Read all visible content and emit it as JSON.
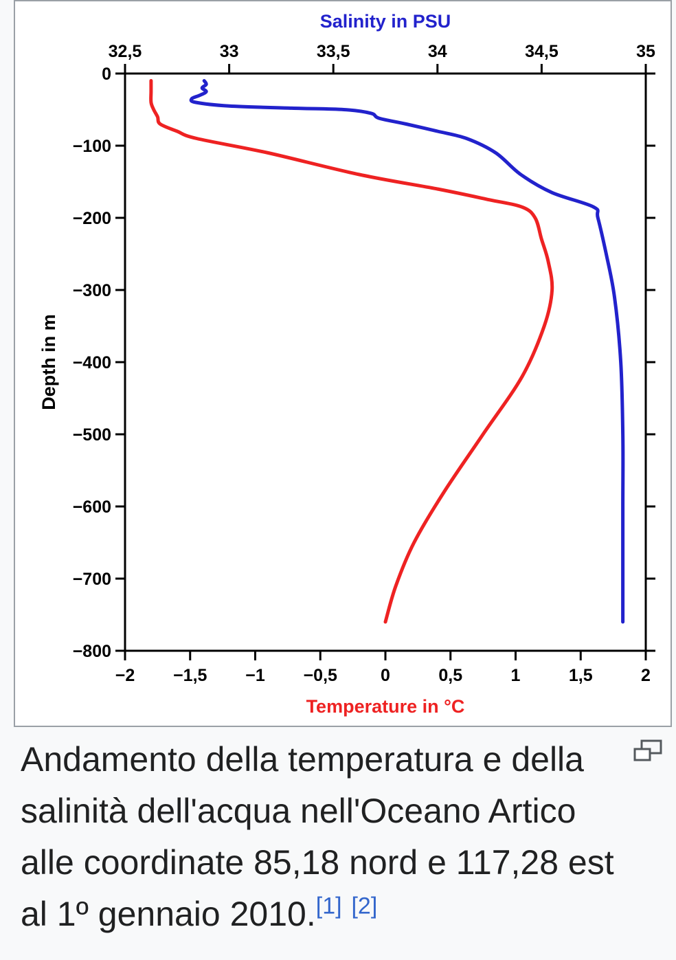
{
  "chart_data": {
    "type": "line",
    "top_axis": {
      "label": "Salinity in PSU",
      "range": [
        32.5,
        35
      ],
      "ticks": [
        32.5,
        33,
        33.5,
        34,
        34.5,
        35
      ],
      "tick_labels": [
        "32,5",
        "33",
        "33,5",
        "34",
        "34,5",
        "35"
      ],
      "color": "#2222cc"
    },
    "bottom_axis": {
      "label": "Temperature in °C",
      "range": [
        -2,
        2
      ],
      "ticks": [
        -2,
        -1.5,
        -1,
        -0.5,
        0,
        0.5,
        1,
        1.5,
        2
      ],
      "tick_labels": [
        "−2",
        "−1,5",
        "−1",
        "−0,5",
        "0",
        "0,5",
        "1",
        "1,5",
        "2"
      ],
      "color": "#ee2222"
    },
    "y_axis": {
      "label": "Depth in m",
      "range": [
        -800,
        0
      ],
      "ticks": [
        0,
        -100,
        -200,
        -300,
        -400,
        -500,
        -600,
        -700,
        -800
      ],
      "tick_labels": [
        "0",
        "−100",
        "−200",
        "−300",
        "−400",
        "−500",
        "−600",
        "−700",
        "−800"
      ]
    },
    "series": [
      {
        "key": "salinity",
        "axis": "top",
        "color": "#2222cc",
        "points": [
          [
            32.88,
            -10
          ],
          [
            32.89,
            -15
          ],
          [
            32.87,
            -20
          ],
          [
            32.89,
            -25
          ],
          [
            32.86,
            -30
          ],
          [
            32.82,
            -35
          ],
          [
            32.84,
            -40
          ],
          [
            33.0,
            -45
          ],
          [
            33.3,
            -48
          ],
          [
            33.55,
            -50
          ],
          [
            33.68,
            -55
          ],
          [
            33.72,
            -62
          ],
          [
            33.85,
            -70
          ],
          [
            34.0,
            -80
          ],
          [
            34.14,
            -90
          ],
          [
            34.28,
            -110
          ],
          [
            34.4,
            -140
          ],
          [
            34.55,
            -165
          ],
          [
            34.75,
            -185
          ],
          [
            34.77,
            -200
          ],
          [
            34.81,
            -250
          ],
          [
            34.85,
            -310
          ],
          [
            34.88,
            -400
          ],
          [
            34.89,
            -500
          ],
          [
            34.89,
            -600
          ],
          [
            34.89,
            -700
          ],
          [
            34.89,
            -760
          ]
        ]
      },
      {
        "key": "temperature",
        "axis": "bottom",
        "color": "#ee2222",
        "points": [
          [
            -1.8,
            -10
          ],
          [
            -1.8,
            -25
          ],
          [
            -1.8,
            -40
          ],
          [
            -1.78,
            -50
          ],
          [
            -1.75,
            -60
          ],
          [
            -1.73,
            -70
          ],
          [
            -1.6,
            -80
          ],
          [
            -1.45,
            -90
          ],
          [
            -0.9,
            -110
          ],
          [
            -0.2,
            -140
          ],
          [
            0.4,
            -160
          ],
          [
            0.8,
            -175
          ],
          [
            1.05,
            -185
          ],
          [
            1.15,
            -200
          ],
          [
            1.2,
            -230
          ],
          [
            1.25,
            -260
          ],
          [
            1.28,
            -300
          ],
          [
            1.22,
            -350
          ],
          [
            1.05,
            -420
          ],
          [
            0.75,
            -500
          ],
          [
            0.45,
            -580
          ],
          [
            0.22,
            -650
          ],
          [
            0.08,
            -710
          ],
          [
            0.0,
            -760
          ]
        ]
      }
    ]
  },
  "caption": {
    "text": "Andamento della temperatura e della salinità dell'acqua nell'Oceano Artico alle coordinate 85,18 nord e 117,28 est al 1º gennaio 2010.",
    "ref1": "[1]",
    "ref2": "[2]"
  },
  "icons": {
    "enlarge": "enlarge-icon"
  }
}
